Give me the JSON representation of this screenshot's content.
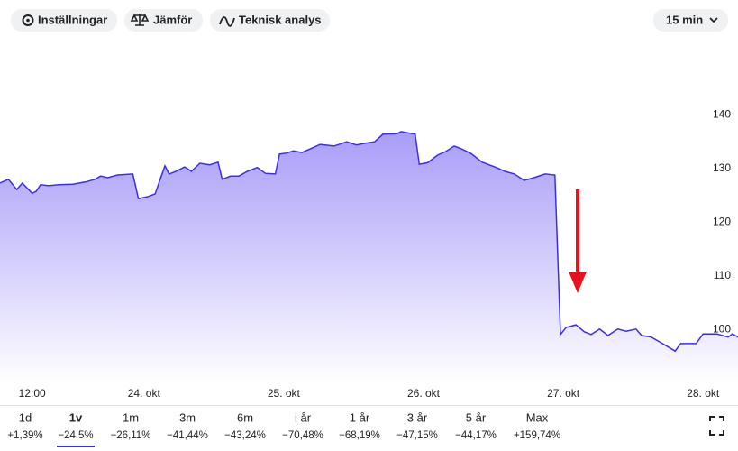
{
  "toolbar": {
    "buttons": [
      "Inställningar",
      "Jämför",
      "Teknisk analys"
    ],
    "interval": "15 min"
  },
  "chart_data": {
    "type": "line",
    "color": "#3d2ee6",
    "x": [
      22.97,
      23.03,
      23.09,
      23.13,
      23.2,
      23.23,
      23.26,
      23.32,
      23.39,
      23.49,
      23.58,
      23.65,
      23.69,
      23.74,
      23.81,
      23.92,
      23.96,
      24.03,
      24.08,
      24.12,
      24.15,
      24.18,
      24.23,
      24.29,
      24.34,
      24.4,
      24.47,
      24.53,
      24.56,
      24.62,
      24.68,
      24.74,
      24.81,
      24.87,
      24.94,
      24.97,
      25.02,
      25.07,
      25.13,
      25.2,
      25.26,
      25.36,
      25.45,
      25.52,
      25.58,
      25.65,
      25.71,
      25.81,
      25.84,
      25.94,
      25.97,
      26.03,
      26.1,
      26.16,
      26.22,
      26.27,
      26.34,
      26.42,
      26.52,
      26.58,
      26.65,
      26.72,
      26.79,
      26.87,
      26.94,
      26.98,
      27.02,
      27.09,
      27.15,
      27.2,
      27.26,
      27.32,
      27.39,
      27.45,
      27.52,
      27.56,
      27.63,
      27.71,
      27.8,
      27.84,
      27.95,
      28.0,
      28.1,
      28.18,
      28.21,
      28.25
    ],
    "values": [
      127.4,
      128.1,
      126.2,
      127.4,
      125.5,
      125.9,
      127.1,
      126.9,
      127.1,
      127.2,
      127.6,
      128.1,
      128.7,
      128.4,
      128.9,
      129.1,
      124.5,
      124.9,
      125.4,
      128.4,
      130.6,
      129.1,
      129.6,
      130.4,
      129.6,
      131.1,
      130.8,
      131.3,
      128.1,
      128.7,
      128.7,
      129.6,
      130.3,
      129.2,
      129.1,
      132.8,
      133.0,
      133.4,
      133.1,
      133.9,
      134.6,
      134.3,
      135.1,
      134.5,
      134.8,
      135.1,
      136.5,
      136.6,
      137.0,
      136.5,
      130.9,
      131.2,
      132.6,
      133.3,
      134.3,
      133.8,
      132.9,
      131.3,
      130.3,
      129.6,
      129.1,
      127.9,
      128.4,
      129.1,
      128.9,
      99.2,
      100.5,
      101.0,
      99.7,
      99.2,
      100.2,
      99.0,
      100.2,
      99.8,
      100.2,
      99.0,
      98.7,
      97.5,
      96.1,
      97.5,
      97.5,
      99.3,
      99.3,
      98.7,
      99.3,
      98.7
    ],
    "xlim": [
      22.97,
      28.25
    ],
    "xticks": [
      {
        "value": 23.2,
        "label": "12:00"
      },
      {
        "value": 24,
        "label": "24. okt"
      },
      {
        "value": 25,
        "label": "25. okt"
      },
      {
        "value": 26,
        "label": "26. okt"
      },
      {
        "value": 27,
        "label": "27. okt"
      },
      {
        "value": 28,
        "label": "28. okt"
      }
    ],
    "ylim": [
      90,
      155
    ],
    "yticks": [
      100,
      110,
      120,
      130,
      140
    ]
  },
  "periods": [
    {
      "label": "1d",
      "change": "+1,39%"
    },
    {
      "label": "1v",
      "change": "−24,5%"
    },
    {
      "label": "1m",
      "change": "−26,11%"
    },
    {
      "label": "3m",
      "change": "−41,44%"
    },
    {
      "label": "6m",
      "change": "−43,24%"
    },
    {
      "label": "i år",
      "change": "−70,48%"
    },
    {
      "label": "1 år",
      "change": "−68,19%"
    },
    {
      "label": "3 år",
      "change": "−47,15%"
    },
    {
      "label": "5 år",
      "change": "−44,17%"
    },
    {
      "label": "Max",
      "change": "+159,74%"
    }
  ],
  "selected_period": 1
}
